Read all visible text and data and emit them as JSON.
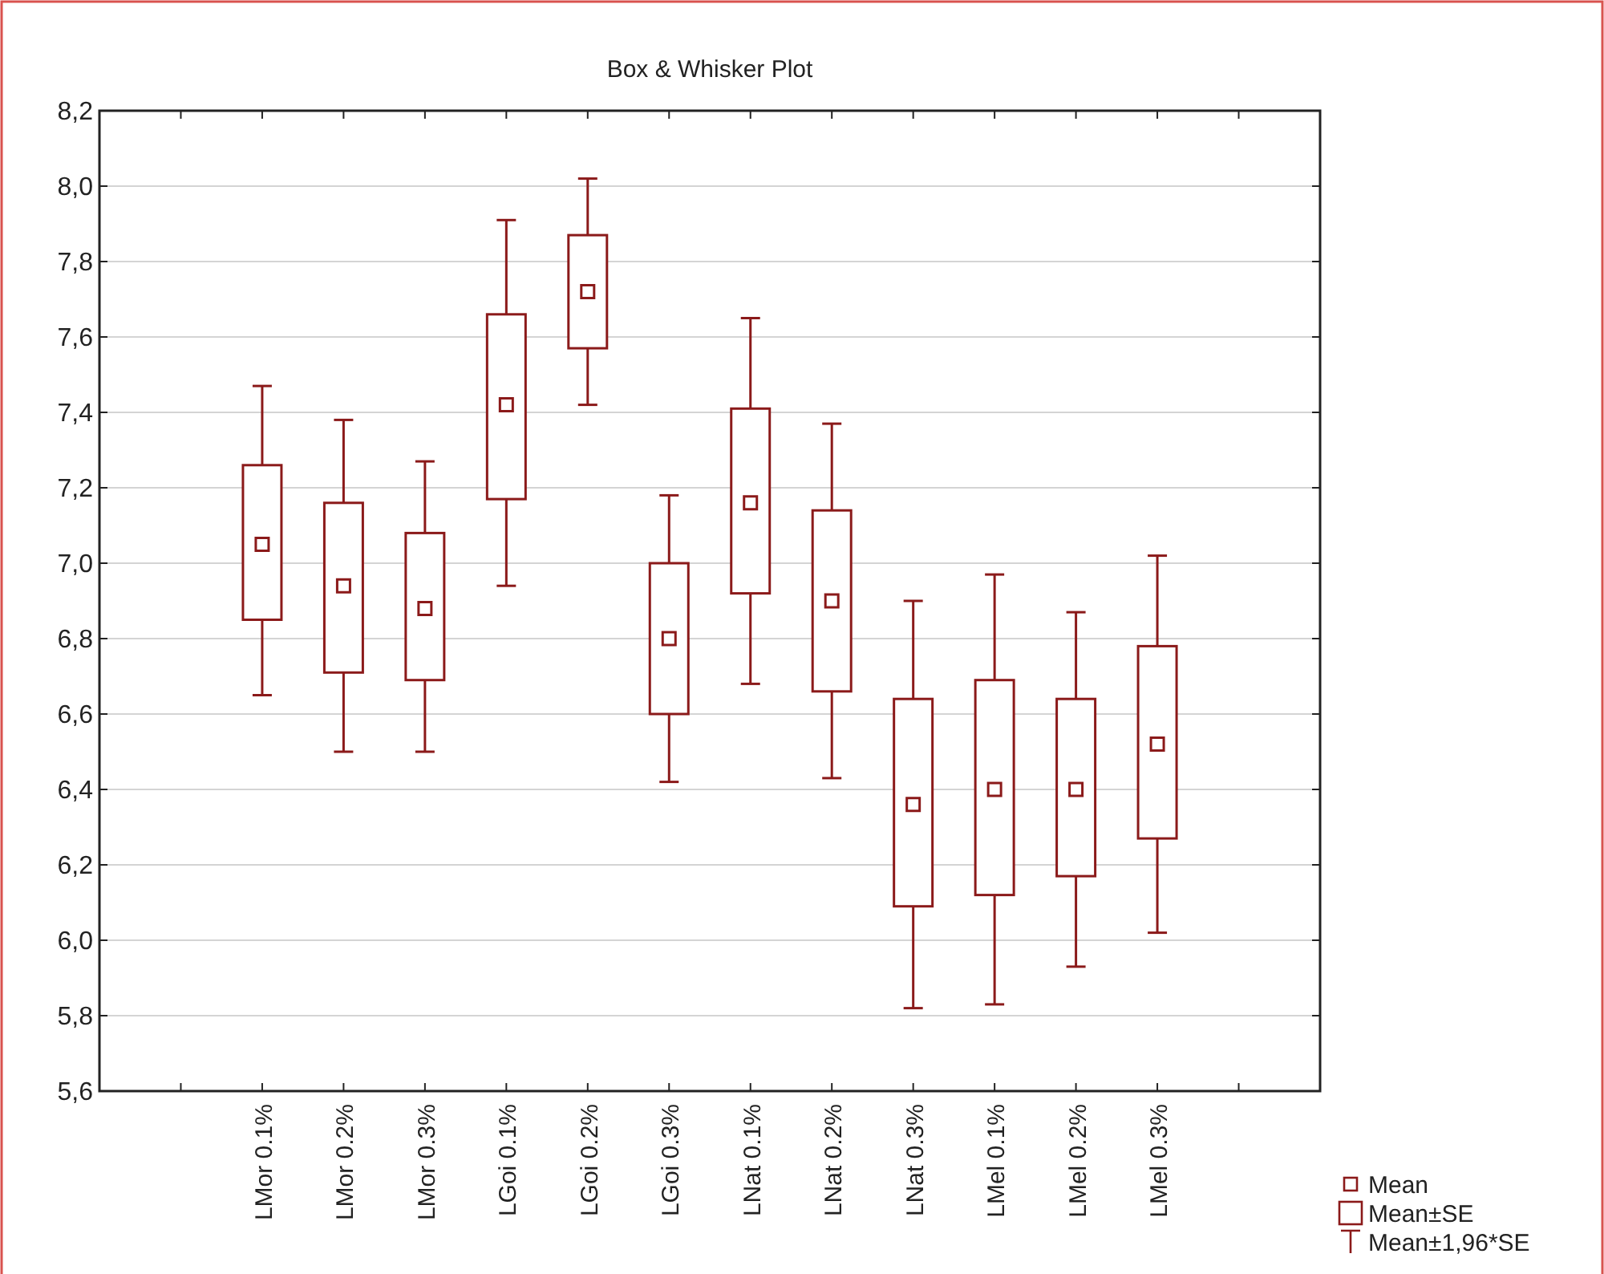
{
  "chart_data": {
    "type": "box",
    "title": "Box & Whisker Plot",
    "categories": [
      null,
      "LMor 0.1%",
      "LMor 0.2%",
      "LMor 0.3%",
      "LGoi 0.1%",
      "LGoi 0.2%",
      "LGoi 0.3%",
      "LNat 0.1%",
      "LNat 0.2%",
      "LNat 0.3%",
      "LMel 0.1%",
      "LMel 0.2%",
      "LMel 0.3%",
      null
    ],
    "color": "#8b1a1a",
    "boxes": [
      null,
      {
        "low": 6.65,
        "q1": 6.85,
        "median": 7.05,
        "q3": 7.26,
        "high": 7.47
      },
      {
        "low": 6.5,
        "q1": 6.71,
        "median": 6.94,
        "q3": 7.16,
        "high": 7.38
      },
      {
        "low": 6.5,
        "q1": 6.69,
        "median": 6.88,
        "q3": 7.08,
        "high": 7.27
      },
      {
        "low": 6.94,
        "q1": 7.17,
        "median": 7.42,
        "q3": 7.66,
        "high": 7.91
      },
      {
        "low": 7.42,
        "q1": 7.57,
        "median": 7.72,
        "q3": 7.87,
        "high": 8.02
      },
      {
        "low": 6.42,
        "q1": 6.6,
        "median": 6.8,
        "q3": 7.0,
        "high": 7.18
      },
      {
        "low": 6.68,
        "q1": 6.92,
        "median": 7.16,
        "q3": 7.41,
        "high": 7.65
      },
      {
        "low": 6.43,
        "q1": 6.66,
        "median": 6.9,
        "q3": 7.14,
        "high": 7.37
      },
      {
        "low": 5.82,
        "q1": 6.09,
        "median": 6.36,
        "q3": 6.64,
        "high": 6.9
      },
      {
        "low": 5.83,
        "q1": 6.12,
        "median": 6.4,
        "q3": 6.69,
        "high": 6.97
      },
      {
        "low": 5.93,
        "q1": 6.17,
        "median": 6.4,
        "q3": 6.64,
        "high": 6.87
      },
      {
        "low": 6.02,
        "q1": 6.27,
        "median": 6.52,
        "q3": 6.78,
        "high": 7.02
      },
      null
    ],
    "ylim": [
      5.6,
      8.2
    ],
    "yticks": [
      {
        "value": 5.6,
        "label": "5,6"
      },
      {
        "value": 5.8,
        "label": "5,8"
      },
      {
        "value": 6.0,
        "label": "6,0"
      },
      {
        "value": 6.2,
        "label": "6,2"
      },
      {
        "value": 6.4,
        "label": "6,4"
      },
      {
        "value": 6.6,
        "label": "6,6"
      },
      {
        "value": 6.8,
        "label": "6,8"
      },
      {
        "value": 7.0,
        "label": "7,0"
      },
      {
        "value": 7.2,
        "label": "7,2"
      },
      {
        "value": 7.4,
        "label": "7,4"
      },
      {
        "value": 7.6,
        "label": "7,6"
      },
      {
        "value": 7.8,
        "label": "7,8"
      },
      {
        "value": 8.0,
        "label": "8,0"
      },
      {
        "value": 8.2,
        "label": "8,2"
      }
    ],
    "grid": "y",
    "marker": "square",
    "annotations": [
      "Mean",
      "Mean±SE",
      "Mean±1,96*SE"
    ]
  }
}
